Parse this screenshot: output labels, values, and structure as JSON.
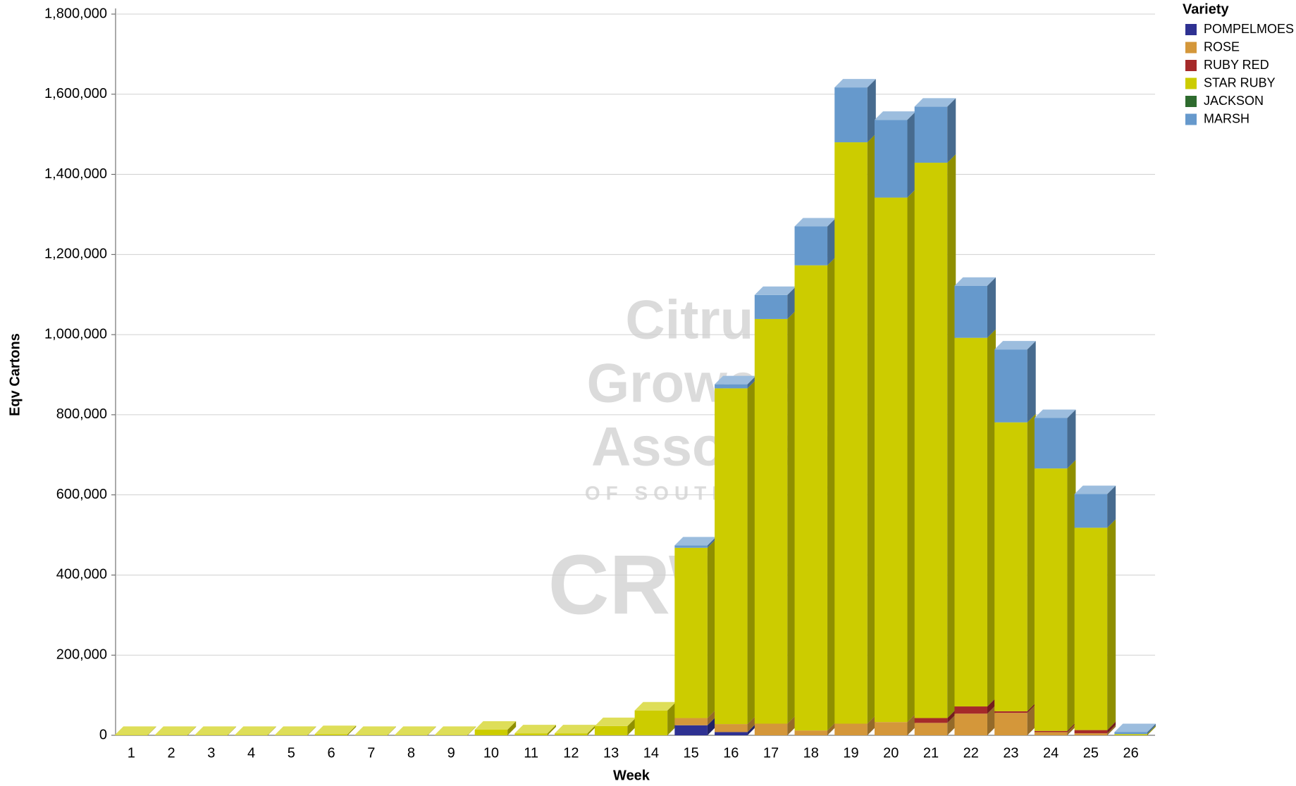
{
  "chart_data": {
    "type": "bar3d_stacked",
    "y_label": "Eqv Cartons",
    "x_label": "Week",
    "legend_title": "Variety",
    "watermark": [
      "Citrus",
      "Growers'",
      "Association",
      "OF SOUTHERN AFRICA",
      "CRW"
    ],
    "categories": [
      "1",
      "2",
      "3",
      "4",
      "5",
      "6",
      "7",
      "8",
      "9",
      "10",
      "11",
      "12",
      "13",
      "14",
      "15",
      "16",
      "17",
      "18",
      "19",
      "20",
      "21",
      "22",
      "23",
      "24",
      "25",
      "26"
    ],
    "series": [
      {
        "name": "POMPELMOES",
        "color": "#2e3192",
        "values": [
          0,
          0,
          0,
          0,
          0,
          0,
          0,
          0,
          0,
          0,
          0,
          0,
          0,
          0,
          25000,
          8000,
          0,
          0,
          0,
          0,
          0,
          0,
          0,
          0,
          0,
          0
        ]
      },
      {
        "name": "ROSE",
        "color": "#d4973a",
        "values": [
          0,
          0,
          0,
          0,
          0,
          0,
          0,
          0,
          0,
          0,
          0,
          0,
          0,
          0,
          18000,
          20000,
          29000,
          12000,
          29000,
          33000,
          31000,
          54000,
          56000,
          8000,
          5000,
          0
        ]
      },
      {
        "name": "RUBY RED",
        "color": "#a52a2a",
        "values": [
          0,
          0,
          0,
          0,
          0,
          0,
          0,
          0,
          0,
          0,
          0,
          0,
          0,
          0,
          0,
          0,
          0,
          0,
          0,
          0,
          12000,
          18000,
          4000,
          3000,
          8000,
          0
        ]
      },
      {
        "name": "STAR RUBY",
        "color": "#cccc00",
        "values": [
          1000,
          1000,
          1000,
          1000,
          1000,
          3000,
          1000,
          1000,
          1000,
          14000,
          5000,
          5000,
          23000,
          62000,
          425000,
          838000,
          1010000,
          1161000,
          1451000,
          1309000,
          1386000,
          920000,
          721000,
          655000,
          505000,
          3000
        ]
      },
      {
        "name": "JACKSON",
        "color": "#2e6b2e",
        "values": [
          0,
          0,
          0,
          0,
          0,
          0,
          0,
          0,
          0,
          0,
          0,
          0,
          0,
          0,
          0,
          0,
          0,
          0,
          0,
          0,
          0,
          0,
          0,
          0,
          0,
          0
        ]
      },
      {
        "name": "MARSH",
        "color": "#6699cc",
        "values": [
          0,
          0,
          0,
          0,
          0,
          0,
          0,
          0,
          0,
          0,
          0,
          0,
          0,
          0,
          6000,
          10000,
          60000,
          97000,
          137000,
          194000,
          140000,
          130000,
          182000,
          126000,
          84000,
          5000
        ]
      }
    ],
    "ylim": [
      0,
      1800000
    ],
    "yticks": [
      0,
      {
        "value": 200000,
        "label": "200,000"
      },
      {
        "value": 400000,
        "label": "400,000"
      },
      {
        "value": 600000,
        "label": "600,000"
      },
      {
        "value": 800000,
        "label": "800,000"
      },
      {
        "value": 1000000,
        "label": "1,000,000"
      },
      {
        "value": 1200000,
        "label": "1,200,000"
      },
      {
        "value": 1400000,
        "label": "1,400,000"
      },
      {
        "value": 1600000,
        "label": "1,600,000"
      },
      {
        "value": 1800000,
        "label": "1,800,000"
      }
    ],
    "grid": true
  }
}
